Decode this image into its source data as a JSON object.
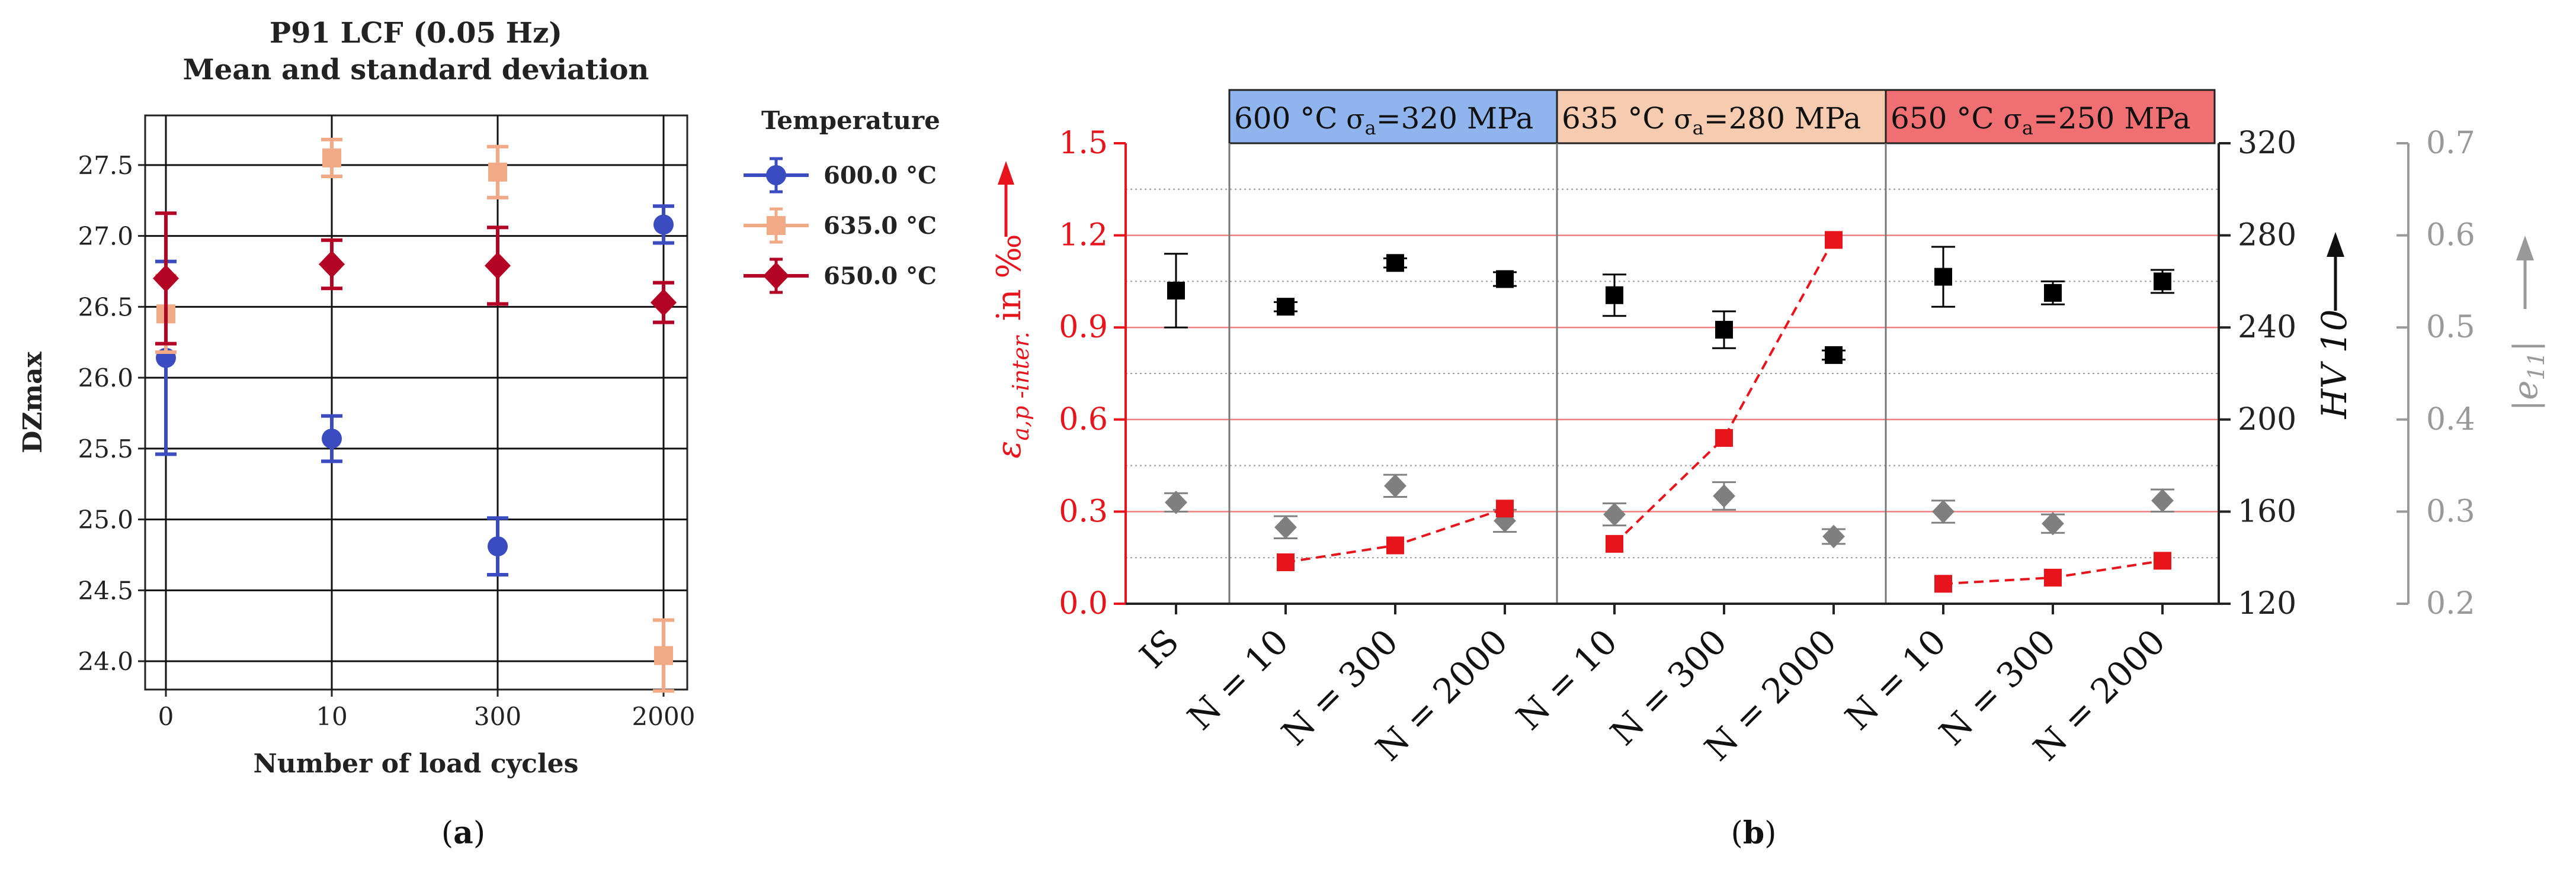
{
  "chart_data": [
    {
      "panel": "a",
      "type": "scatter",
      "title": [
        "P91 LCF (0.05 Hz)",
        "Mean and standard deviation"
      ],
      "xlabel": "Number of load cycles",
      "ylabel": "DZmax",
      "categories": [
        "0",
        "10",
        "300",
        "2000"
      ],
      "ylim": [
        23.8,
        27.85
      ],
      "yticks": [
        "24.0",
        "24.5",
        "25.0",
        "25.5",
        "26.0",
        "26.5",
        "27.0",
        "27.5"
      ],
      "legend_title": "Temperature",
      "grid": true,
      "series": [
        {
          "name": "600.0 °C",
          "color": "#3b4cc0",
          "marker": "circle",
          "values": [
            26.14,
            25.57,
            24.81,
            27.08
          ],
          "err": [
            0.68,
            0.16,
            0.2,
            0.13
          ]
        },
        {
          "name": "635.0 °C",
          "color": "#f2aa86",
          "marker": "square",
          "values": [
            26.45,
            27.55,
            27.45,
            24.04
          ],
          "err": [
            0.27,
            0.13,
            0.18,
            0.25
          ]
        },
        {
          "name": "650.0 °C",
          "color": "#b40426",
          "marker": "diamond",
          "values": [
            26.7,
            26.8,
            26.79,
            26.53
          ],
          "err": [
            0.46,
            0.17,
            0.27,
            0.14
          ]
        }
      ],
      "caption": "a"
    },
    {
      "panel": "b",
      "type": "scatter",
      "categories": [
        "IS",
        "N = 10",
        "N = 300",
        "N = 2000",
        "N = 10",
        "N = 300",
        "N = 2000",
        "N = 10",
        "N = 300",
        "N = 2000"
      ],
      "groups": [
        {
          "temp": "600 °C",
          "sigma_sym": "σ",
          "sigma_sub": "a",
          "stress": "=320 MPa",
          "color": "#8fb4ee"
        },
        {
          "temp": "635 °C",
          "sigma_sym": "σ",
          "sigma_sub": "a",
          "stress": "=280 MPa",
          "color": "#f6cbb0"
        },
        {
          "temp": "650 °C ",
          "sigma_sym": "σ",
          "sigma_sub": "a",
          "stress": "=250 MPa",
          "color": "#ef6f73"
        }
      ],
      "left_axis": {
        "ylim": [
          0,
          1.5
        ],
        "ticks": [
          "0.0",
          "0.3",
          "0.6",
          "0.9",
          "1.2",
          "1.5"
        ],
        "label_main": "ε",
        "label_sub": "a,p -inter.",
        "label_rest": " in ‰",
        "color": "#e8141b"
      },
      "right_axis_1": {
        "ylim": [
          120,
          320
        ],
        "ticks": [
          "120",
          "160",
          "200",
          "240",
          "280",
          "320"
        ],
        "label": "HV 10",
        "color": "#000000"
      },
      "right_axis_2": {
        "ylim": [
          0.2,
          0.7
        ],
        "ticks": [
          "0.2",
          "0.3",
          "0.4",
          "0.5",
          "0.6",
          "0.7"
        ],
        "label_main": "|e",
        "label_sub": "11",
        "label_rest": "|",
        "color": "#999999"
      },
      "series": [
        {
          "name": "HV 10",
          "axis": "right_axis_1",
          "color": "#000000",
          "marker": "square",
          "values": [
            256,
            249,
            268,
            261,
            254,
            239,
            228,
            262,
            255,
            260
          ],
          "err": [
            16,
            2,
            2,
            3,
            9,
            8,
            2,
            13,
            5,
            5
          ]
        },
        {
          "name": "|e11|",
          "axis": "right_axis_2",
          "color": "#7f7f7f",
          "marker": "diamond",
          "values": [
            0.31,
            0.283,
            0.328,
            0.29,
            0.297,
            0.317,
            0.273,
            0.3,
            0.287,
            0.312
          ],
          "err": [
            0.01,
            0.012,
            0.012,
            0.012,
            0.012,
            0.015,
            0.008,
            0.012,
            0.01,
            0.012
          ]
        },
        {
          "name": "ε a,p -inter.",
          "axis": "left_axis",
          "color": "#e8141b",
          "marker": "square",
          "dashed_line": true,
          "segments": [
            [
              1,
              2,
              3
            ],
            [
              4,
              5,
              6
            ],
            [
              7,
              8,
              9
            ]
          ],
          "values": [
            null,
            0.135,
            0.19,
            0.31,
            0.195,
            0.54,
            1.185,
            0.065,
            0.085,
            0.14
          ]
        }
      ],
      "caption": "b"
    }
  ]
}
